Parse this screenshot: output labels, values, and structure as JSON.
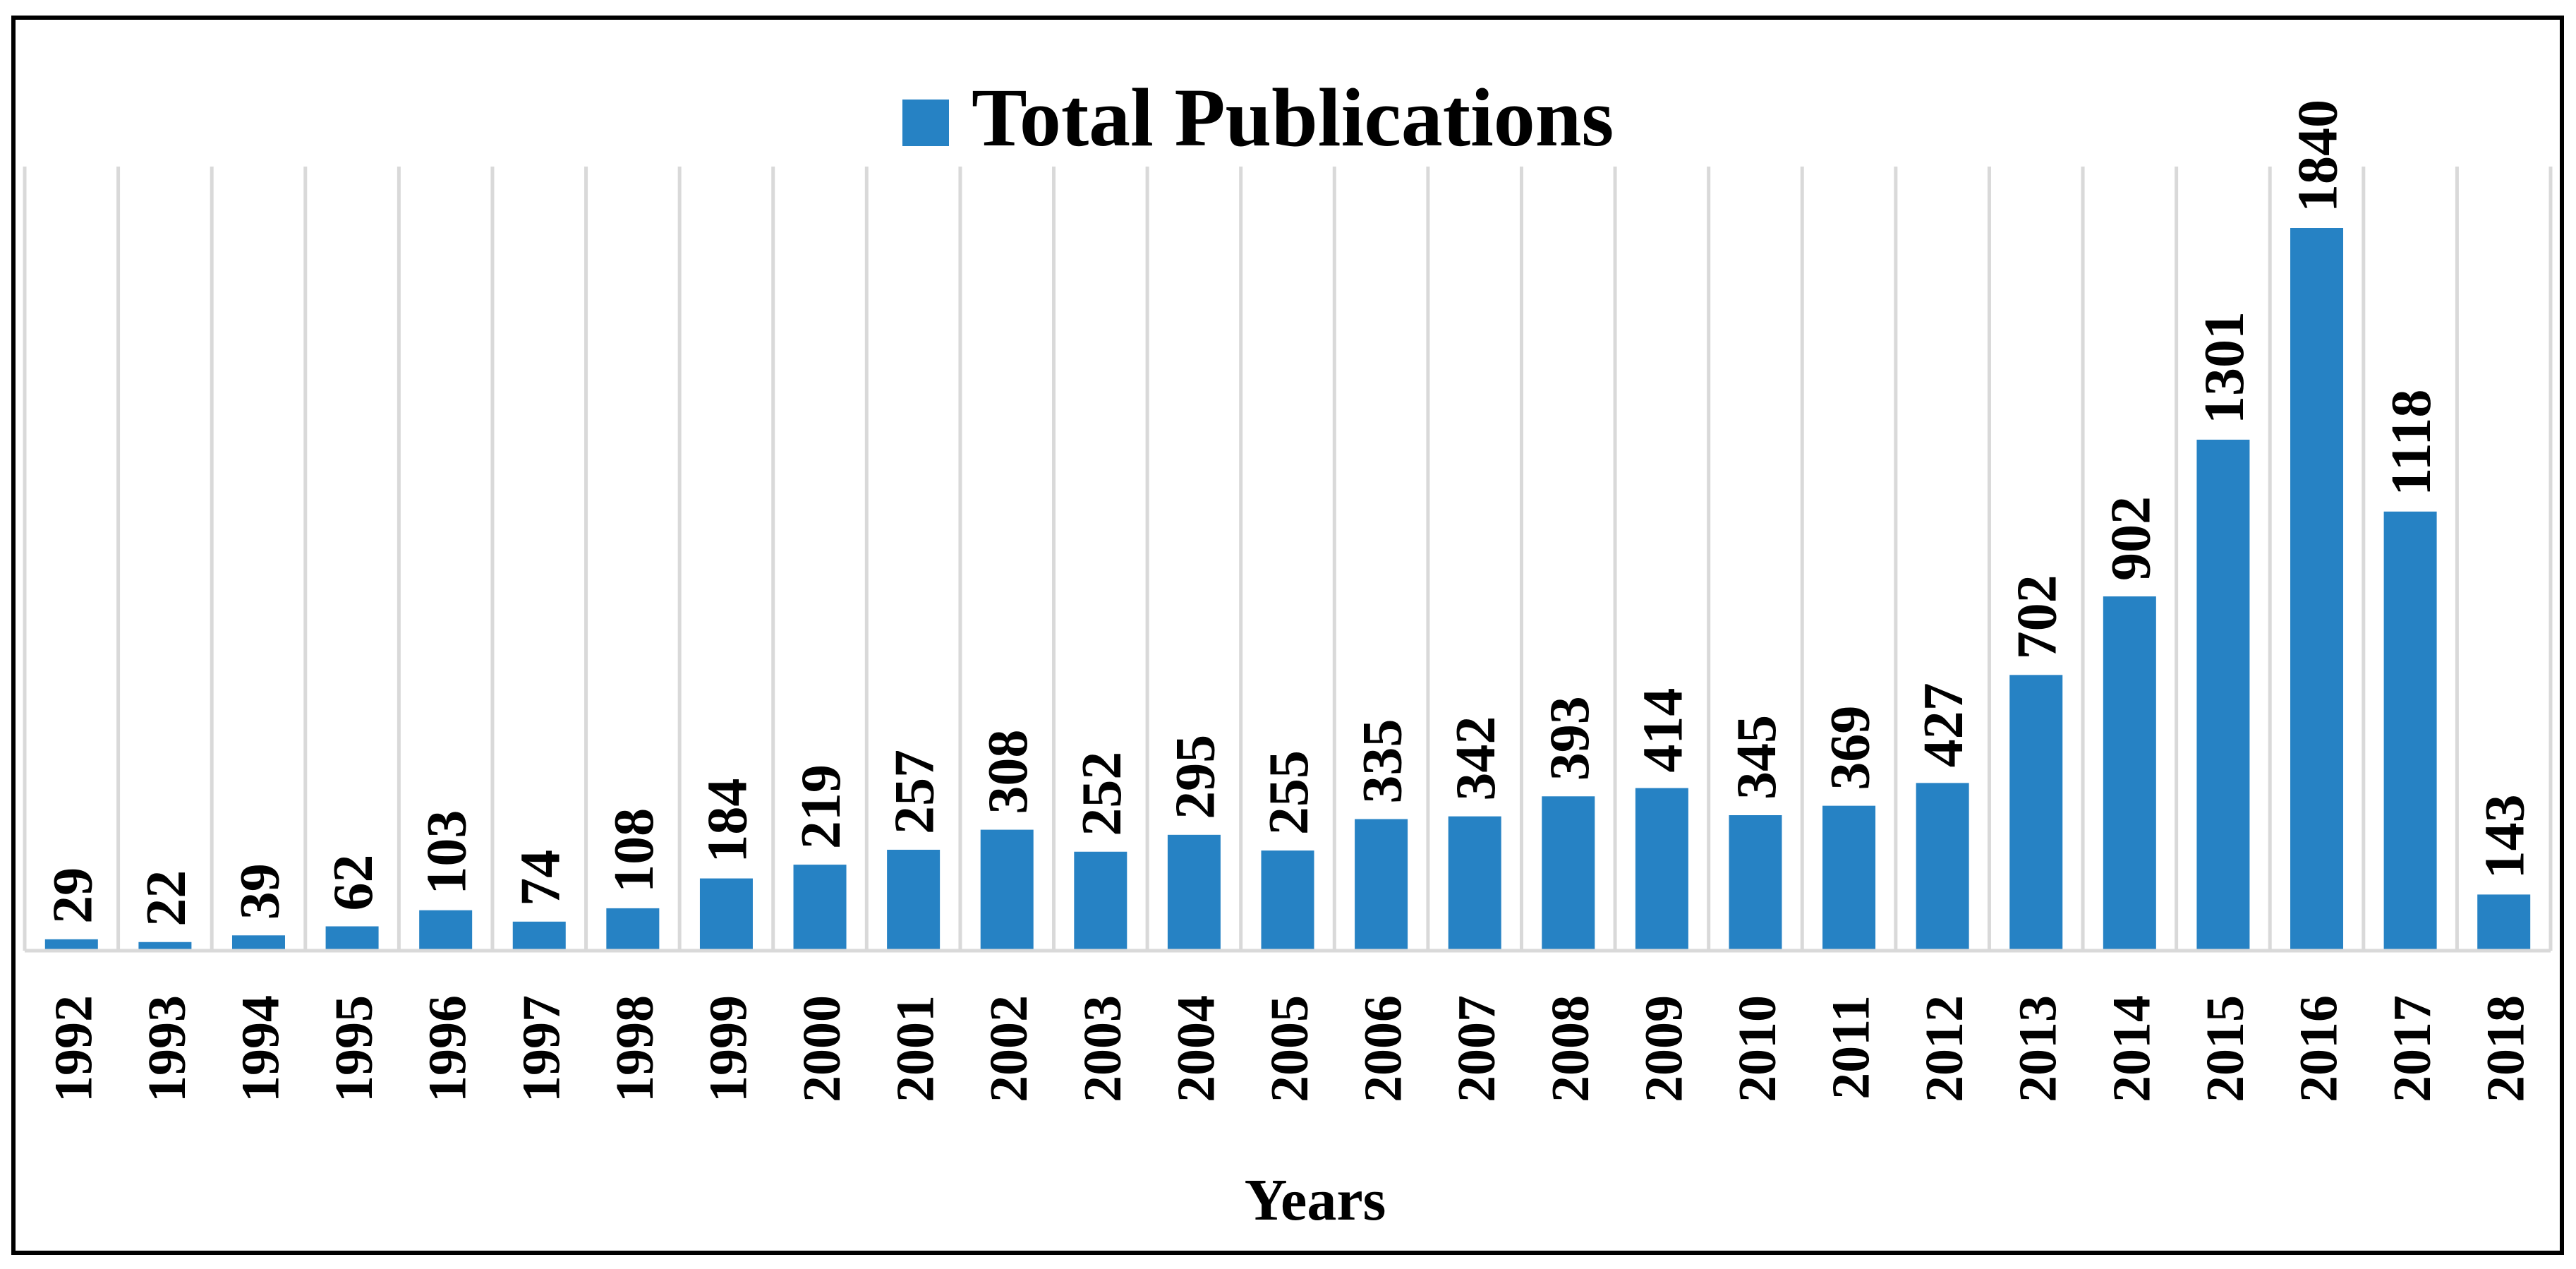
{
  "chart_data": {
    "type": "bar",
    "legend_position": "top-center",
    "xlabel": "Years",
    "ylabel": "",
    "grid": "vertical",
    "ylim": [
      0,
      1840
    ],
    "categories": [
      "1992",
      "1993",
      "1994",
      "1995",
      "1996",
      "1997",
      "1998",
      "1999",
      "2000",
      "2001",
      "2002",
      "2003",
      "2004",
      "2005",
      "2006",
      "2007",
      "2008",
      "2009",
      "2010",
      "2011",
      "2012",
      "2013",
      "2014",
      "2015",
      "2016",
      "2017",
      "2018"
    ],
    "series": [
      {
        "name": "Total Publications",
        "color": "#2682C4",
        "values": [
          29,
          22,
          39,
          62,
          103,
          74,
          108,
          184,
          219,
          257,
          308,
          252,
          295,
          255,
          335,
          342,
          393,
          414,
          345,
          369,
          427,
          702,
          902,
          1301,
          1840,
          1118,
          143
        ]
      }
    ]
  }
}
